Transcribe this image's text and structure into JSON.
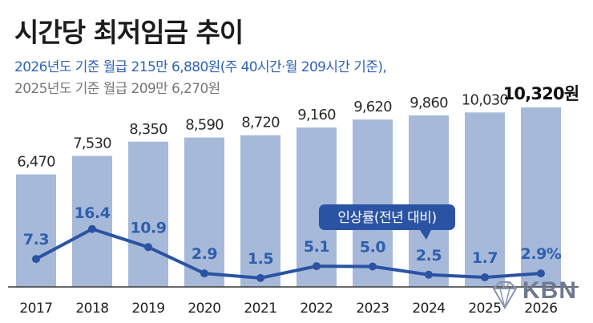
{
  "header": {
    "title": "시간당 최저임금 추이",
    "subtitle_current": "2026년도 기준 월급 215만 6,880원(주 40시간·월 209시간 기준),",
    "subtitle_previous": "2025년도 기준 월급 209만 6,270원"
  },
  "chart_data": {
    "type": "bar",
    "categories": [
      "2017",
      "2018",
      "2019",
      "2020",
      "2021",
      "2022",
      "2023",
      "2024",
      "2025",
      "2026"
    ],
    "series": [
      {
        "values": [
          6470,
          7530,
          8350,
          8590,
          8720,
          9160,
          9620,
          9860,
          10030,
          10320
        ],
        "labels": [
          "6,470",
          "7,530",
          "8,350",
          "8,590",
          "8,720",
          "9,160",
          "9,620",
          "9,860",
          "10,030",
          "10,320원"
        ],
        "color": "#a7b9d9",
        "type": "bar"
      },
      {
        "name": "인상률(전년 대비)",
        "values": [
          7.3,
          16.4,
          10.9,
          2.9,
          1.5,
          5.1,
          5.0,
          2.5,
          1.7,
          2.9
        ],
        "labels": [
          "7.3",
          "16.4",
          "10.9",
          "2.9",
          "1.5",
          "5.1",
          "5.0",
          "2.5",
          "1.7",
          "2.9%"
        ],
        "color": "#2a53a3",
        "type": "line"
      }
    ],
    "ylim": [
      0,
      10320
    ],
    "grid": false
  },
  "watermark": {
    "text": "KBN"
  },
  "colors": {
    "bar": "#a7b9d9",
    "line": "#2a53a3",
    "bar_label": "#2b2b2b",
    "line_label": "#2f5fae",
    "callout_bg": "#2a53a3",
    "callout_text": "#ffffff"
  }
}
